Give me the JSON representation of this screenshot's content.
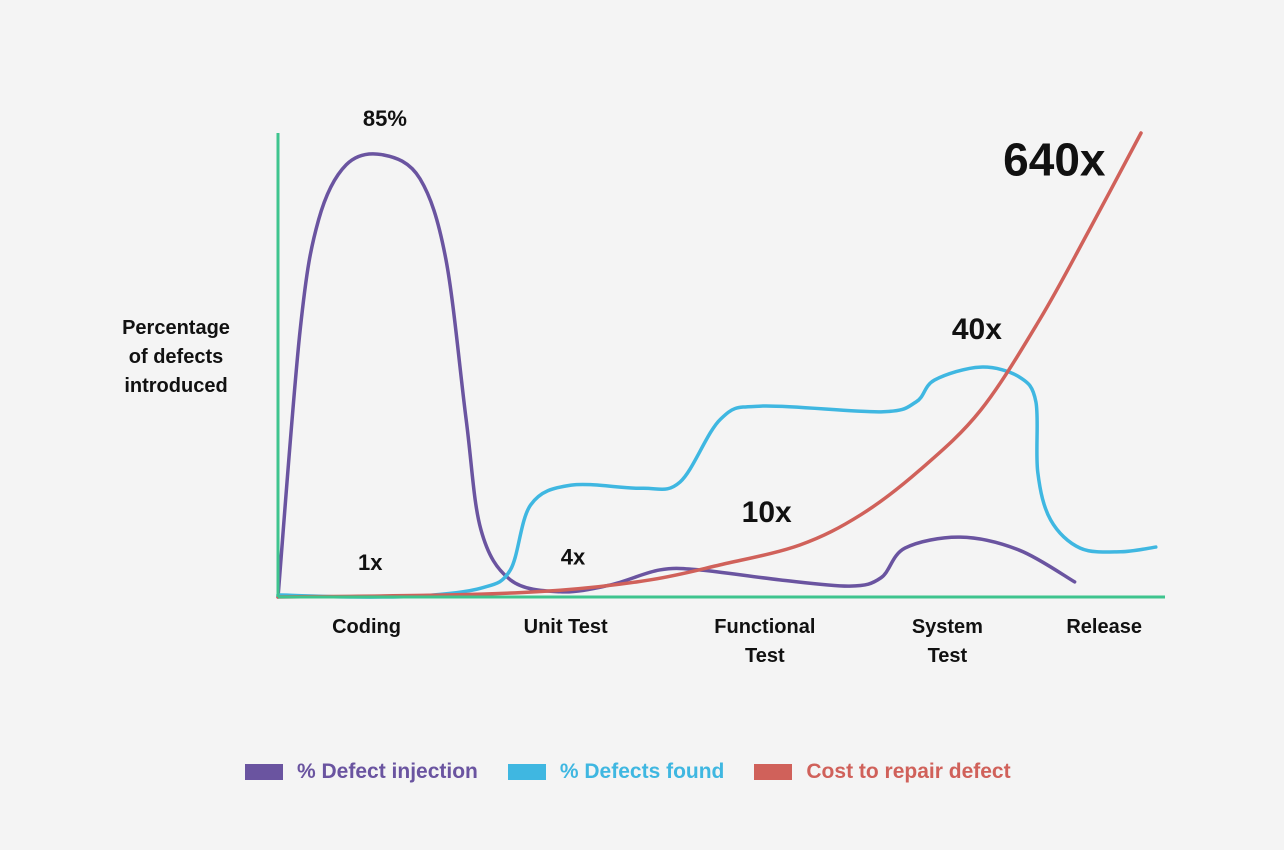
{
  "chart_data": {
    "type": "line",
    "ylabel": [
      "Percentage",
      "of defects",
      "introduced"
    ],
    "xlim": [
      -0.48,
      4.33
    ],
    "ylim": [
      0,
      89.2
    ],
    "grid": false,
    "legend_placement": "bottom",
    "categories": [
      {
        "label": [
          "Coding"
        ],
        "x": 0
      },
      {
        "label": [
          "Unit Test"
        ],
        "x": 1.08
      },
      {
        "label": [
          "Functional",
          "Test"
        ],
        "x": 2.16
      },
      {
        "label": [
          "System",
          "Test"
        ],
        "x": 3.15
      },
      {
        "label": [
          "Release"
        ],
        "x": 4
      }
    ],
    "series": [
      {
        "name": "% Defect injection",
        "color": "#6a54a0",
        "points": [
          [
            -0.48,
            0
          ],
          [
            -0.36,
            51.3
          ],
          [
            -0.26,
            72.5
          ],
          [
            -0.11,
            83.1
          ],
          [
            0.09,
            85
          ],
          [
            0.29,
            80.4
          ],
          [
            0.43,
            65
          ],
          [
            0.54,
            34.2
          ],
          [
            0.62,
            13
          ],
          [
            0.78,
            3.3
          ],
          [
            1.05,
            1
          ],
          [
            1.32,
            2.3
          ],
          [
            1.59,
            5.2
          ],
          [
            1.81,
            5.2
          ],
          [
            2.24,
            3.3
          ],
          [
            2.62,
            2.1
          ],
          [
            2.79,
            3.7
          ],
          [
            2.92,
            9.4
          ],
          [
            3.22,
            11.5
          ],
          [
            3.54,
            9
          ],
          [
            3.84,
            2.9
          ]
        ]
      },
      {
        "name": "% Defects found",
        "color": "#3fb7e1",
        "points": [
          [
            -0.48,
            0.4
          ],
          [
            -0.09,
            0
          ],
          [
            0.29,
            0.2
          ],
          [
            0.62,
            1.7
          ],
          [
            0.78,
            5.2
          ],
          [
            0.89,
            17.7
          ],
          [
            1.11,
            21.5
          ],
          [
            1.49,
            20.9
          ],
          [
            1.7,
            22.1
          ],
          [
            1.92,
            34.2
          ],
          [
            2.14,
            36.7
          ],
          [
            2.79,
            35.6
          ],
          [
            2.98,
            37.5
          ],
          [
            3.08,
            41.7
          ],
          [
            3.33,
            44.2
          ],
          [
            3.54,
            42.3
          ],
          [
            3.63,
            37.5
          ],
          [
            3.64,
            24
          ],
          [
            3.71,
            14.8
          ],
          [
            3.87,
            9.4
          ],
          [
            4.09,
            8.7
          ],
          [
            4.28,
            9.6
          ]
        ]
      },
      {
        "name": "Cost to repair defect",
        "color": "#d0615a",
        "points": [
          [
            -0.48,
            0
          ],
          [
            0.46,
            0.4
          ],
          [
            1.05,
            1.3
          ],
          [
            1.54,
            3.3
          ],
          [
            1.92,
            6.2
          ],
          [
            2.35,
            10
          ],
          [
            2.68,
            15.8
          ],
          [
            3.0,
            24.4
          ],
          [
            3.33,
            35.9
          ],
          [
            3.65,
            53.3
          ],
          [
            3.92,
            70.6
          ],
          [
            4.2,
            89.2
          ]
        ]
      }
    ],
    "annotations": [
      {
        "text": "85%",
        "x": 0.1,
        "y": 90.5,
        "size": "medium"
      },
      {
        "text": "1x",
        "x": 0.02,
        "y": 5.2,
        "size": "medium"
      },
      {
        "text": "4x",
        "x": 1.12,
        "y": 6.2,
        "size": "medium"
      },
      {
        "text": "10x",
        "x": 2.17,
        "y": 14.4,
        "size": "large"
      },
      {
        "text": "40x",
        "x": 3.31,
        "y": 49.6,
        "size": "large"
      },
      {
        "text": "640x",
        "x": 3.73,
        "y": 81,
        "size": "xlarge"
      }
    ],
    "axis_color": "#3ec48e"
  }
}
